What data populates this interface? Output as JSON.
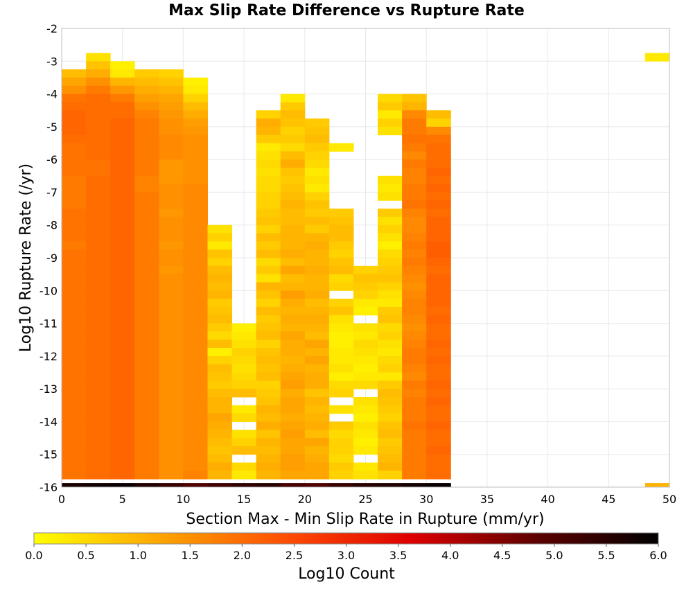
{
  "chart_data": {
    "type": "heatmap",
    "title": "Max Slip Rate Difference vs Rupture Rate",
    "xlabel": "Section Max - Min Slip Rate in Rupture (mm/yr)",
    "ylabel": "Log10 Rupture Rate (/yr)",
    "xlim": [
      0,
      50
    ],
    "ylim": [
      -16,
      -2
    ],
    "x_ticks": [
      "0",
      "5",
      "10",
      "15",
      "20",
      "25",
      "30",
      "35",
      "40",
      "45",
      "50"
    ],
    "y_ticks": [
      "-2",
      "-3",
      "-4",
      "-5",
      "-6",
      "-7",
      "-8",
      "-9",
      "-10",
      "-11",
      "-12",
      "-13",
      "-14",
      "-15",
      "-16"
    ],
    "x_bin_width": 2,
    "y_bin_height": 0.25,
    "grid": true,
    "colorbar": {
      "label": "Log10 Count",
      "min": 0,
      "max": 6,
      "ticks": [
        "0.0",
        "0.5",
        "1.0",
        "1.5",
        "2.0",
        "2.5",
        "3.0",
        "3.5",
        "4.0",
        "4.5",
        "5.0",
        "5.5",
        "6.0"
      ],
      "colors": [
        "#ffff00",
        "#ffa500",
        "#ff5000",
        "#e00000",
        "#600000",
        "#000000"
      ]
    },
    "columns": [
      {
        "x0": 0,
        "top": -3.25,
        "values": [
          0.9,
          1.2,
          1.5,
          1.9,
          2.0,
          2.1,
          2.1,
          2.1,
          2.0,
          1.9,
          1.9,
          1.9,
          1.9,
          1.8,
          1.8,
          1.8,
          1.8,
          1.9,
          1.9,
          1.9,
          1.9,
          1.8,
          1.9,
          1.9,
          1.9,
          1.9,
          1.9,
          1.9,
          1.9,
          1.9,
          1.9,
          1.9,
          1.9,
          1.9,
          1.9,
          1.9,
          1.9,
          1.9,
          1.9,
          1.9,
          1.9,
          1.9,
          1.9,
          1.9,
          1.9,
          1.9,
          1.9,
          1.9,
          1.9,
          1.9,
          1.9
        ]
      },
      {
        "x0": 2,
        "top": -2.75,
        "values": [
          0.4,
          0.8,
          1.1,
          1.5,
          1.8,
          2.0,
          2.0,
          2.0,
          2.0,
          2.0,
          2.0,
          2.0,
          2.0,
          1.9,
          1.9,
          2.0,
          2.0,
          2.0,
          2.0,
          2.0,
          2.0,
          2.0,
          2.0,
          2.0,
          2.0,
          2.0,
          2.0,
          2.0,
          2.0,
          2.0,
          2.0,
          2.0,
          2.0,
          2.0,
          2.0,
          2.0,
          2.0,
          2.0,
          2.0,
          2.0,
          2.0,
          2.0,
          2.0,
          2.0,
          2.0,
          2.0,
          2.0,
          2.0,
          2.0,
          2.0,
          2.0,
          2.0,
          2.0
        ]
      },
      {
        "x0": 4,
        "top": -3.0,
        "values": [
          0.2,
          0.3,
          1.0,
          1.4,
          1.8,
          2.0,
          2.0,
          2.1,
          2.1,
          2.1,
          2.1,
          2.1,
          2.1,
          2.1,
          2.1,
          2.1,
          2.1,
          2.1,
          2.1,
          2.1,
          2.1,
          2.1,
          2.1,
          2.1,
          2.1,
          2.1,
          2.1,
          2.1,
          2.1,
          2.1,
          2.1,
          2.1,
          2.1,
          2.1,
          2.1,
          2.1,
          2.1,
          2.1,
          2.1,
          2.1,
          2.1,
          2.1,
          2.1,
          2.1,
          2.1,
          2.1,
          2.1,
          2.1,
          2.1,
          2.1,
          2.1,
          2.1
        ]
      },
      {
        "x0": 6,
        "top": -3.25,
        "values": [
          0.7,
          0.9,
          1.1,
          1.3,
          1.5,
          1.7,
          1.8,
          1.8,
          1.8,
          1.8,
          1.8,
          1.8,
          1.8,
          1.7,
          1.7,
          1.8,
          1.8,
          1.8,
          1.8,
          1.8,
          1.8,
          1.8,
          1.8,
          1.8,
          1.8,
          1.8,
          1.8,
          1.8,
          1.8,
          1.8,
          1.8,
          1.8,
          1.8,
          1.8,
          1.8,
          1.8,
          1.8,
          1.8,
          1.8,
          1.8,
          1.8,
          1.8,
          1.8,
          1.8,
          1.8,
          1.8,
          1.8,
          1.8,
          1.8,
          1.8,
          1.8
        ]
      },
      {
        "x0": 8,
        "top": -3.25,
        "values": [
          0.6,
          0.8,
          1.0,
          1.2,
          1.3,
          1.4,
          1.5,
          1.5,
          1.6,
          1.6,
          1.6,
          1.4,
          1.4,
          1.4,
          1.5,
          1.5,
          1.5,
          1.4,
          1.5,
          1.5,
          1.5,
          1.4,
          1.5,
          1.5,
          1.4,
          1.5,
          1.5,
          1.5,
          1.5,
          1.5,
          1.5,
          1.5,
          1.5,
          1.5,
          1.5,
          1.5,
          1.5,
          1.5,
          1.5,
          1.5,
          1.5,
          1.5,
          1.5,
          1.5,
          1.5,
          1.5,
          1.5,
          1.5,
          1.5,
          1.5,
          1.4
        ]
      },
      {
        "x0": 10,
        "top": -3.5,
        "values": [
          0.2,
          0.3,
          0.6,
          0.9,
          1.1,
          1.3,
          1.4,
          1.5,
          1.5,
          1.5,
          1.5,
          1.5,
          1.5,
          1.6,
          1.6,
          1.6,
          1.6,
          1.6,
          1.6,
          1.6,
          1.6,
          1.6,
          1.6,
          1.6,
          1.6,
          1.6,
          1.6,
          1.6,
          1.6,
          1.6,
          1.6,
          1.6,
          1.6,
          1.6,
          1.6,
          1.6,
          1.6,
          1.6,
          1.6,
          1.6,
          1.6,
          1.6,
          1.6,
          1.6,
          1.6,
          1.6,
          1.6,
          1.6,
          1.7,
          1.6
        ]
      },
      {
        "x0": 12,
        "top": -8.0,
        "values": [
          0.4,
          0.6,
          0.3,
          0.8,
          0.6,
          0.9,
          1.0,
          0.9,
          1.0,
          0.7,
          0.8,
          0.9,
          0.7,
          0.5,
          0.9,
          0.2,
          0.6,
          0.9,
          0.8,
          0.7,
          0.9,
          1.0,
          1.0,
          1.2,
          1.1,
          1.0,
          0.9,
          0.8,
          0.9,
          1.1,
          1.0,
          1.1
        ]
      },
      {
        "x0": 14,
        "top": -11.0,
        "values": [
          0.2,
          0.3,
          0.4,
          0.6,
          0.5,
          0.4,
          0.5,
          0.6,
          0.9,
          null,
          0.3,
          0.5,
          null,
          0.4,
          0.6,
          0.9,
          null,
          0.5,
          0.3,
          0.4
        ]
      },
      {
        "x0": 16,
        "top": -4.5,
        "values": [
          0.6,
          1.1,
          1.0,
          0.7,
          0.3,
          0.4,
          0.5,
          0.4,
          0.5,
          0.5,
          0.6,
          0.6,
          0.7,
          0.8,
          0.6,
          0.9,
          0.7,
          0.9,
          0.5,
          0.7,
          0.4,
          1.0,
          0.8,
          0.6,
          0.9,
          0.7,
          0.8,
          0.9,
          0.6,
          0.8,
          0.9,
          0.8,
          0.9,
          0.6,
          0.7,
          0.8,
          1.0,
          0.9,
          1.1,
          0.8,
          1.0,
          0.9,
          1.0,
          1.1,
          1.0,
          0.9
        ]
      },
      {
        "x0": 18,
        "top": -4.0,
        "values": [
          0.3,
          0.7,
          0.9,
          0.8,
          0.6,
          0.7,
          0.5,
          0.9,
          1.1,
          0.8,
          0.7,
          0.8,
          0.9,
          1.0,
          0.9,
          0.9,
          1.0,
          1.0,
          1.0,
          1.1,
          0.9,
          1.2,
          0.9,
          1.0,
          1.3,
          1.1,
          1.0,
          1.1,
          1.0,
          1.2,
          1.1,
          1.1,
          1.0,
          1.1,
          1.2,
          1.3,
          1.1,
          1.2,
          1.2,
          1.1,
          1.2,
          1.3,
          1.2,
          1.2,
          1.3,
          1.3,
          1.2,
          1.2
        ]
      },
      {
        "x0": 20,
        "top": -4.75,
        "values": [
          0.7,
          0.8,
          0.9,
          0.7,
          0.6,
          0.5,
          0.3,
          0.4,
          0.3,
          0.6,
          0.8,
          0.7,
          0.9,
          0.7,
          1.0,
          1.1,
          1.0,
          1.0,
          1.1,
          1.0,
          1.0,
          1.1,
          0.9,
          1.0,
          1.1,
          1.0,
          0.9,
          1.2,
          1.0,
          1.2,
          1.0,
          1.1,
          1.1,
          0.8,
          1.0,
          0.9,
          1.0,
          1.1,
          0.9,
          1.2,
          1.0,
          1.1,
          1.2,
          1.2,
          1.3
        ]
      },
      {
        "x0": 22,
        "top": -5.5,
        "values": [
          0.3,
          null,
          null,
          null,
          null,
          null,
          null,
          null,
          0.7,
          0.8,
          0.9,
          0.9,
          0.7,
          0.6,
          0.8,
          0.9,
          0.5,
          0.6,
          null,
          0.6,
          0.8,
          0.4,
          0.3,
          0.2,
          0.2,
          0.3,
          0.3,
          0.4,
          0.2,
          0.5,
          0.6,
          null,
          0.4,
          null,
          0.7,
          0.5,
          0.6,
          0.6,
          0.5,
          0.7,
          0.6,
          0.9,
          0.8
        ]
      },
      {
        "x0": 24,
        "top": -9.25,
        "values": [
          0.6,
          0.8,
          0.7,
          0.6,
          0.3,
          0.2,
          null,
          0.4,
          0.3,
          0.5,
          0.4,
          0.3,
          0.2,
          0.3,
          0.5,
          null,
          0.4,
          0.3,
          0.2,
          0.4,
          0.3,
          0.2,
          0.3,
          null,
          0.3,
          0.4,
          0.2,
          0.3
        ]
      },
      {
        "x0": 26,
        "top": -4.0,
        "values": [
          0.5,
          0.7,
          0.3,
          0.6,
          0.4,
          null,
          null,
          null,
          null,
          null,
          0.4,
          0.3,
          0.4,
          null,
          0.7,
          0.4,
          0.6,
          0.4,
          0.2,
          0.5,
          0.6,
          0.7,
          0.8,
          0.6,
          0.4,
          0.3,
          0.7,
          0.8,
          0.5,
          0.6,
          0.4,
          0.3,
          0.5,
          0.6,
          0.3,
          0.7,
          0.9,
          0.8,
          0.7,
          0.6,
          0.8,
          0.9,
          0.7,
          0.8,
          0.9,
          1.0,
          0.6,
          0.7
        ]
      },
      {
        "x0": 28,
        "top": -4.0,
        "values": [
          0.8,
          1.0,
          1.6,
          1.8,
          1.8,
          1.9,
          1.8,
          1.6,
          1.8,
          1.7,
          1.7,
          1.8,
          1.8,
          1.9,
          1.7,
          1.6,
          1.6,
          1.7,
          1.8,
          1.7,
          1.8,
          1.7,
          1.6,
          1.5,
          1.6,
          1.7,
          1.7,
          1.6,
          1.5,
          1.6,
          1.7,
          1.8,
          1.8,
          1.7,
          1.6,
          1.8,
          1.7,
          1.8,
          1.8,
          1.8,
          1.9,
          1.8,
          1.8,
          1.8,
          1.8,
          1.8,
          1.8,
          1.8
        ]
      },
      {
        "x0": 30,
        "top": -4.5,
        "values": [
          0.9,
          0.6,
          1.6,
          1.9,
          2.0,
          2.0,
          2.0,
          2.1,
          2.0,
          2.1,
          2.0,
          2.1,
          2.0,
          2.1,
          2.1,
          2.1,
          2.2,
          2.2,
          2.1,
          2.0,
          2.1,
          2.1,
          2.1,
          2.1,
          2.0,
          2.1,
          2.0,
          2.0,
          2.1,
          2.0,
          2.1,
          2.0,
          2.0,
          2.1,
          2.0,
          2.1,
          2.0,
          2.0,
          2.1,
          2.0,
          2.0,
          2.1,
          2.0,
          2.0,
          2.0,
          2.0
        ]
      },
      {
        "x0": 48,
        "top": -2.75,
        "values": [
          0.3
        ]
      }
    ],
    "bottom_row": {
      "y0": -16,
      "y1": -15.875,
      "x0": 0,
      "x1": 32,
      "values": [
        5.7,
        5.8,
        5.9,
        5.6,
        5.3,
        5.0,
        5.2,
        5.4,
        5.5,
        5.1,
        5.0,
        5.3,
        5.5,
        5.6,
        5.8,
        5.9
      ]
    },
    "extra_cells": [
      {
        "x0": 48,
        "x1": 50,
        "y0": -16,
        "y1": -15.875,
        "value": 1.0
      }
    ]
  }
}
